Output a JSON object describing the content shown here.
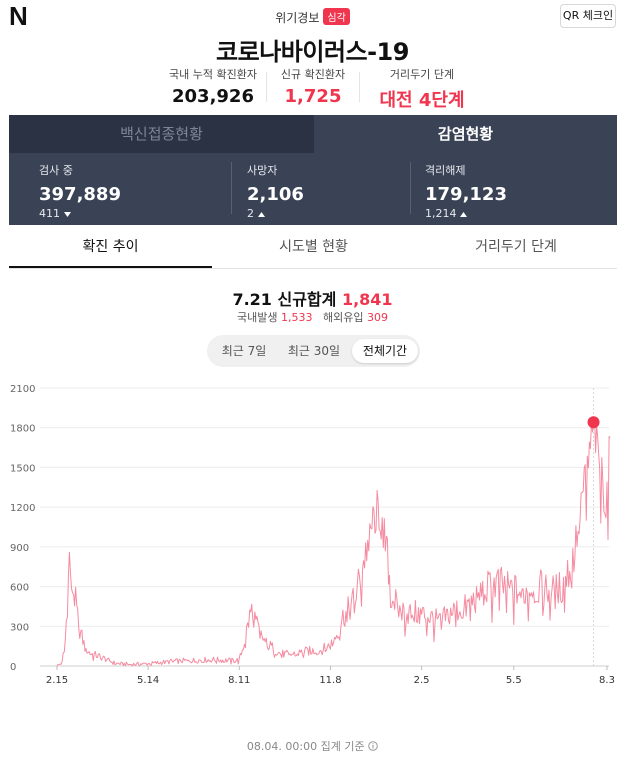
{
  "header": {
    "logo": "N",
    "alert_label": "위기경보",
    "alert_level": "심각",
    "qr_label": "QR 체크인",
    "title": "코로나바이러스-19"
  },
  "kpis": [
    {
      "label": "국내 누적 확진환자",
      "value": "203,926"
    },
    {
      "label": "신규 확진환자",
      "value": "1,725"
    },
    {
      "label": "거리두기 단계",
      "value": "대전 4단계"
    }
  ],
  "panel": {
    "tabs": [
      "백신접종현황",
      "감염현황"
    ],
    "stats": [
      {
        "label": "검사 중",
        "value": "397,889",
        "delta": "411",
        "direction": "down"
      },
      {
        "label": "사망자",
        "value": "2,106",
        "delta": "2",
        "direction": "up"
      },
      {
        "label": "격리해제",
        "value": "179,123",
        "delta": "1,214",
        "direction": "up"
      }
    ]
  },
  "tabs": [
    "확진 추이",
    "시도별 현황",
    "거리두기 단계"
  ],
  "summary": {
    "date_label": "7.21 신규합계",
    "total": "1,841",
    "domestic_label": "국내발생",
    "domestic": "1,533",
    "overseas_label": "해외유입",
    "overseas": "309"
  },
  "period_buttons": [
    "최근 7일",
    "최근 30일",
    "전체기간"
  ],
  "chart_data": {
    "type": "line",
    "ylim": [
      0,
      2100
    ],
    "yticks": [
      0,
      300,
      600,
      900,
      1200,
      1500,
      1800,
      2100
    ],
    "xtick_labels": [
      "2.15",
      "5.14",
      "8.11",
      "11.8",
      "2.5",
      "5.5",
      "8.3"
    ],
    "xtick_index": [
      0,
      88,
      176,
      264,
      352,
      441,
      531
    ],
    "highlight": {
      "index": 518,
      "value": 1841,
      "label": "7.21"
    },
    "series": [
      {
        "color": "#f58ba0",
        "anchors": [
          [
            0,
            0
          ],
          [
            5,
            25
          ],
          [
            8,
            200
          ],
          [
            10,
            480
          ],
          [
            12,
            820
          ],
          [
            14,
            640
          ],
          [
            16,
            560
          ],
          [
            18,
            480
          ],
          [
            21,
            300
          ],
          [
            24,
            220
          ],
          [
            27,
            140
          ],
          [
            32,
            95
          ],
          [
            40,
            75
          ],
          [
            48,
            50
          ],
          [
            56,
            20
          ],
          [
            70,
            12
          ],
          [
            90,
            18
          ],
          [
            110,
            35
          ],
          [
            130,
            42
          ],
          [
            150,
            48
          ],
          [
            170,
            40
          ],
          [
            176,
            45
          ],
          [
            180,
            150
          ],
          [
            184,
            300
          ],
          [
            188,
            440
          ],
          [
            192,
            330
          ],
          [
            196,
            240
          ],
          [
            202,
            170
          ],
          [
            208,
            140
          ],
          [
            215,
            95
          ],
          [
            225,
            85
          ],
          [
            240,
            110
          ],
          [
            255,
            120
          ],
          [
            264,
            160
          ],
          [
            270,
            240
          ],
          [
            276,
            370
          ],
          [
            282,
            430
          ],
          [
            288,
            520
          ],
          [
            295,
            750
          ],
          [
            302,
            1000
          ],
          [
            306,
            1120
          ],
          [
            310,
            1200
          ],
          [
            314,
            1050
          ],
          [
            318,
            880
          ],
          [
            323,
            550
          ],
          [
            330,
            420
          ],
          [
            340,
            400
          ],
          [
            350,
            400
          ],
          [
            360,
            370
          ],
          [
            370,
            330
          ],
          [
            380,
            410
          ],
          [
            395,
            440
          ],
          [
            410,
            560
          ],
          [
            425,
            630
          ],
          [
            435,
            580
          ],
          [
            441,
            570
          ],
          [
            450,
            550
          ],
          [
            460,
            600
          ],
          [
            470,
            580
          ],
          [
            480,
            560
          ],
          [
            488,
            600
          ],
          [
            492,
            680
          ],
          [
            496,
            760
          ],
          [
            500,
            880
          ],
          [
            505,
            1200
          ],
          [
            510,
            1400
          ],
          [
            514,
            1600
          ],
          [
            518,
            1841
          ],
          [
            522,
            1600
          ],
          [
            526,
            1450
          ],
          [
            530,
            1200
          ],
          [
            534,
            1725
          ]
        ]
      }
    ]
  },
  "footer": {
    "text": "08.04. 00:00 집계 기준",
    "icon": "info-icon"
  }
}
